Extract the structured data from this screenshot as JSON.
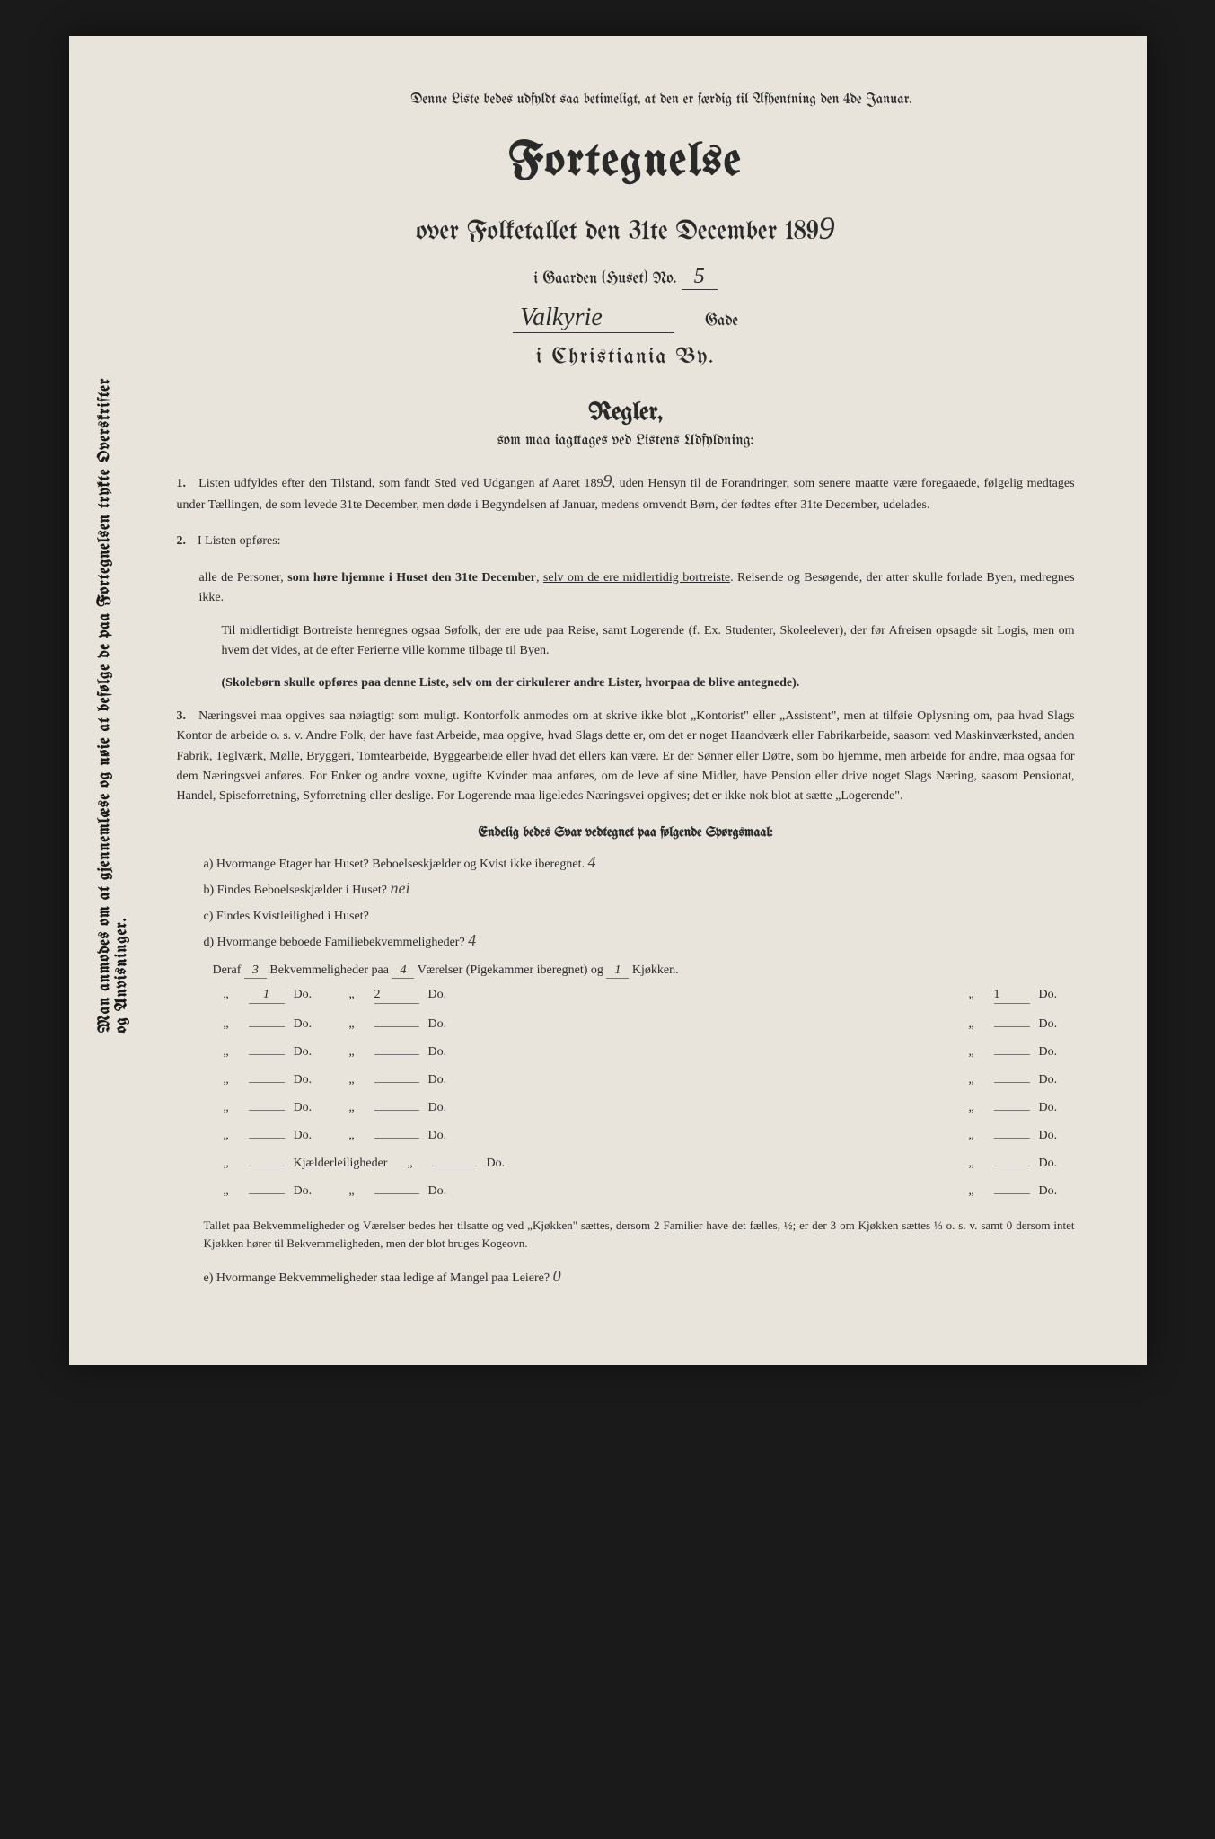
{
  "vertical_margin_text": "Man anmodes om at gjennemlæse og nøie at befølge de paa Fortegnelsen trykte Overskrifter og Anvisninger.",
  "top_notice": "Denne Liste bedes udfyldt saa betimeligt, at den er færdig til Afhentning den 4de Januar.",
  "title": "Fortegnelse",
  "subtitle_prefix": "over Folketallet den 31te December 189",
  "year_handwritten": "9",
  "address": {
    "prefix": "i Gaarden (Huset) No.",
    "number_hw": "5",
    "street_hw": "Valkyrie",
    "gade_label": "Gade",
    "city": "i Christiania By."
  },
  "regler": {
    "heading": "Regler,",
    "subheading": "som maa iagttages ved Listens Udfyldning:",
    "rule1_num": "1.",
    "rule1": "Listen udfyldes efter den Tilstand, som fandt Sted ved Udgangen af Aaret 189",
    "rule1_year_hw": "9",
    "rule1_cont": ", uden Hensyn til de Forandringer, som senere maatte være foregaaede, følgelig medtages under Tællingen, de som levede 31te December, men døde i Begyndelsen af Januar, medens omvendt Børn, der fødtes efter 31te December, udelades.",
    "rule2_num": "2.",
    "rule2_intro": "I Listen opføres:",
    "rule2_a": "alle de Personer, som høre hjemme i Huset den 31te December, selv om de ere midlertidig bortreiste. Reisende og Besøgende, der atter skulle forlade Byen, medregnes ikke.",
    "rule2_b": "Til midlertidigt Bortreiste henregnes ogsaa Søfolk, der ere ude paa Reise, samt Logerende (f. Ex. Studenter, Skoleelever), der før Afreisen opsagde sit Logis, men om hvem det vides, at de efter Ferierne ville komme tilbage til Byen.",
    "rule2_c": "(Skolebørn skulle opføres paa denne Liste, selv om der cirkulerer andre Lister, hvorpaa de blive antegnede).",
    "rule3_num": "3.",
    "rule3": "Næringsvei maa opgives saa nøiagtigt som muligt. Kontorfolk anmodes om at skrive ikke blot „Kontorist\" eller „Assistent\", men at tilføie Oplysning om, paa hvad Slags Kontor de arbeide o. s. v. Andre Folk, der have fast Arbeide, maa opgive, hvad Slags dette er, om det er noget Haandværk eller Fabrikarbeide, saasom ved Maskinværksted, anden Fabrik, Teglværk, Mølle, Bryggeri, Tomtearbeide, Byggearbeide eller hvad det ellers kan være. Er der Sønner eller Døtre, som bo hjemme, men arbeide for andre, maa ogsaa for dem Næringsvei anføres. For Enker og andre voxne, ugifte Kvinder maa anføres, om de leve af sine Midler, have Pension eller drive noget Slags Næring, saasom Pensionat, Handel, Spiseforretning, Syforretning eller deslige. For Logerende maa ligeledes Næringsvei opgives; det er ikke nok blot at sætte „Logerende\"."
  },
  "questions": {
    "heading": "Endelig bedes Svar vedtegnet paa følgende Spørgsmaal:",
    "a": "a) Hvormange Etager har Huset? Beboelseskjælder og Kvist ikke iberegnet.",
    "a_hw": "4",
    "b": "b) Findes Beboelseskjælder i Huset?",
    "b_hw": "nei",
    "c": "c) Findes Kvistleilighed i Huset?",
    "c_hw": "",
    "d": "d) Hvormange beboede Familiebekvemmeligheder?",
    "d_hw": "4"
  },
  "table": {
    "header_prefix": "Deraf",
    "header_count_hw": "3",
    "header_mid": "Bekvemmeligheder paa",
    "header_rooms_hw": "4",
    "header_suffix": "Værelser (Pigekammer iberegnet) og",
    "header_kitchen_hw": "1",
    "header_end": "Kjøkken.",
    "rows": [
      {
        "col1_hw": "1",
        "col2_hw": "2",
        "col3_hw": "1"
      },
      {
        "col1_hw": "",
        "col2_hw": "",
        "col3_hw": ""
      },
      {
        "col1_hw": "",
        "col2_hw": "",
        "col3_hw": ""
      },
      {
        "col1_hw": "",
        "col2_hw": "",
        "col3_hw": ""
      },
      {
        "col1_hw": "",
        "col2_hw": "",
        "col3_hw": ""
      },
      {
        "col1_hw": "",
        "col2_hw": "",
        "col3_hw": ""
      }
    ],
    "do_label": "Do.",
    "kjaelder_label": "Kjælderleiligheder",
    "kjaelder_row": {
      "col1_hw": "",
      "col2_hw": "",
      "col3_hw": ""
    },
    "last_row": {
      "col1_hw": "",
      "col2_hw": "",
      "col3_hw": ""
    }
  },
  "footer": {
    "text": "Tallet paa Bekvemmeligheder og Værelser bedes her tilsatte og ved „Kjøkken\" sættes, dersom 2 Familier have det fælles, ½; er der 3 om Kjøkken sættes ⅓ o. s. v. samt 0 dersom intet Kjøkken hører til Bekvemmeligheden, men der blot bruges Kogeovn.",
    "e_question": "e) Hvormange Bekvemmeligheder staa ledige af Mangel paa Leiere?",
    "e_hw": "0"
  },
  "colors": {
    "paper": "#e8e4dc",
    "text": "#2a2a2a",
    "background": "#1a1a1a",
    "handwriting": "#444444",
    "underline": "#777777"
  }
}
